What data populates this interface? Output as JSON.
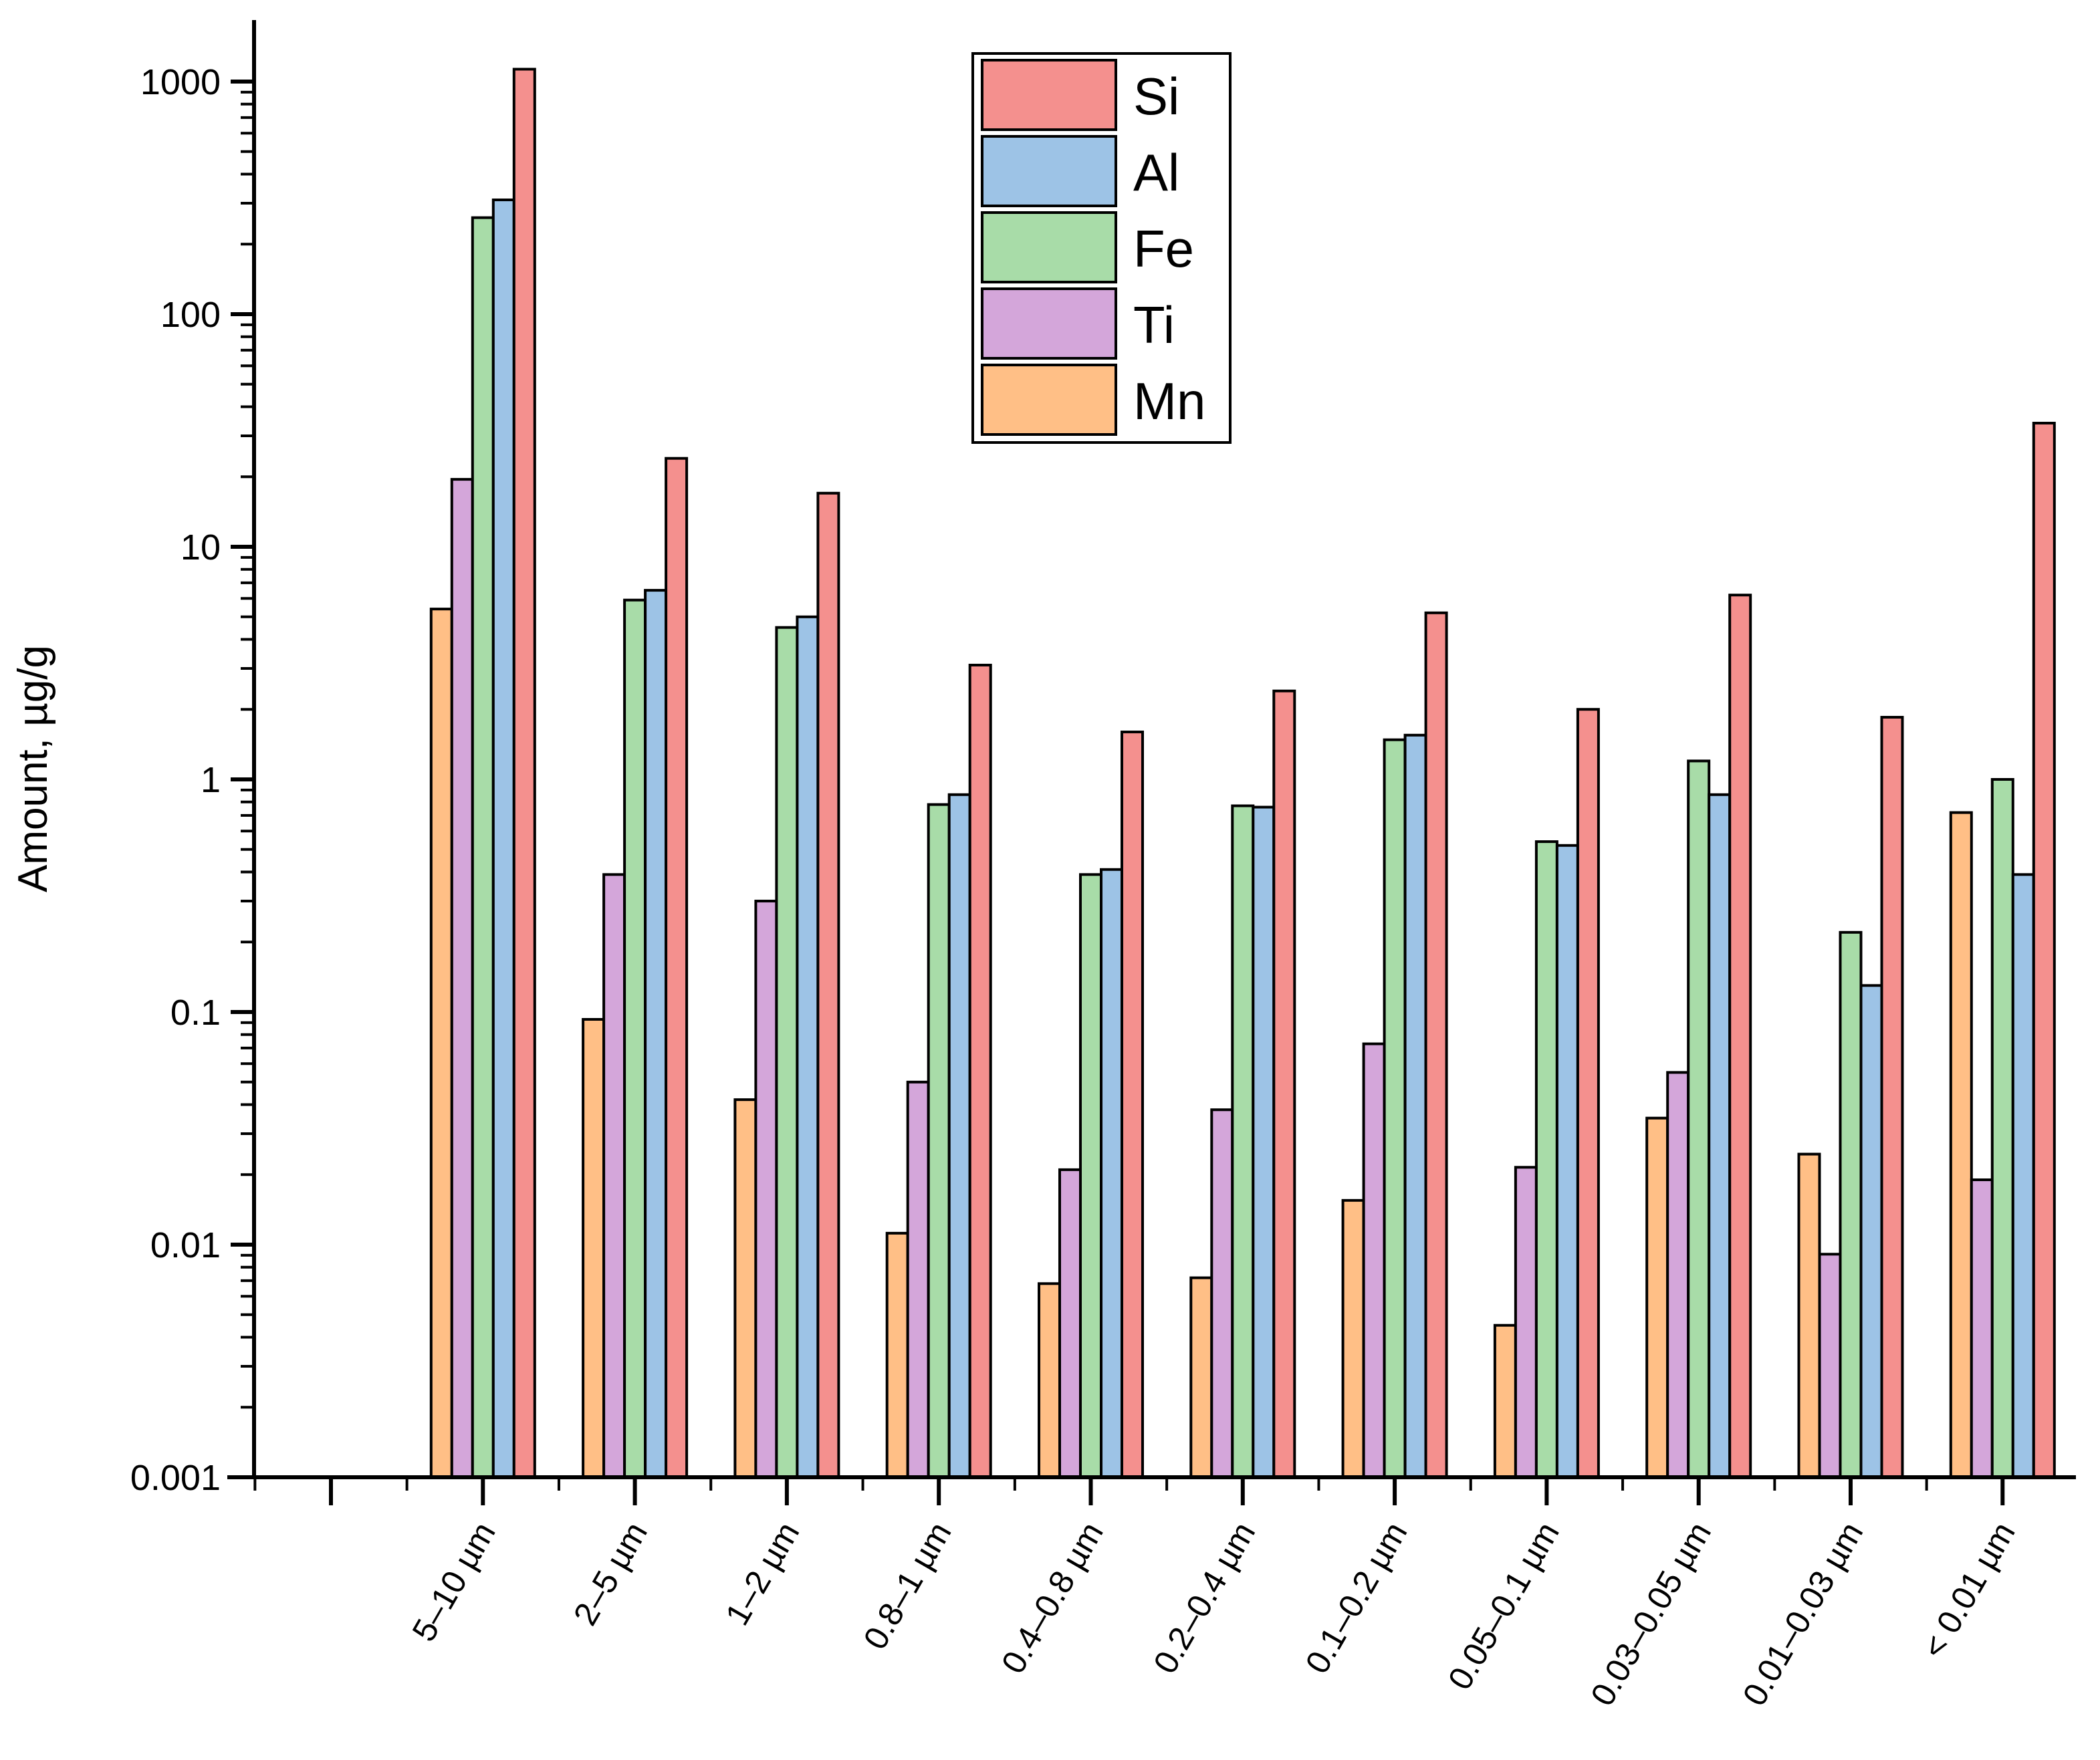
{
  "chart_data": {
    "type": "bar",
    "scale": "log",
    "title": "",
    "xlabel": "",
    "ylabel": "Amount, µg/g",
    "ylim": [
      0.001,
      1000
    ],
    "yticks": [
      {
        "value": 0.001,
        "label": "0.001"
      },
      {
        "value": 0.01,
        "label": "0.01"
      },
      {
        "value": 0.1,
        "label": "0.1"
      },
      {
        "value": 1,
        "label": "1"
      },
      {
        "value": 10,
        "label": "10"
      },
      {
        "value": 100,
        "label": "100"
      },
      {
        "value": 1000,
        "label": "1000"
      }
    ],
    "categories": [
      "",
      "5–10 µm",
      "2–5 µm",
      "1–2 µm",
      "0.8–1 µm",
      "0.4–0.8 µm",
      "0.2–0.4 µm",
      "0.1–0.2 µm",
      "0.05–0.1 µm",
      "0.03–0.05 µm",
      "0.01–0.03 µm",
      "< 0.01 µm"
    ],
    "legend_position": "top-center",
    "series": [
      {
        "name": "Mn",
        "color": "#FFBF86",
        "values": [
          null,
          5.4,
          0.093,
          0.042,
          0.0112,
          0.0068,
          0.0072,
          0.0155,
          0.0045,
          0.035,
          0.0245,
          0.72
        ]
      },
      {
        "name": "Ti",
        "color": "#D4A6DA",
        "values": [
          null,
          19.5,
          0.39,
          0.3,
          0.05,
          0.021,
          0.038,
          0.073,
          0.0215,
          0.055,
          0.0091,
          0.019
        ]
      },
      {
        "name": "Fe",
        "color": "#A8DCA8",
        "values": [
          null,
          260,
          5.9,
          4.5,
          0.78,
          0.39,
          0.77,
          1.48,
          0.54,
          1.2,
          0.22,
          1.0
        ]
      },
      {
        "name": "Al",
        "color": "#9DC3E6",
        "values": [
          null,
          310,
          6.5,
          5.0,
          0.86,
          0.41,
          0.76,
          1.55,
          0.52,
          0.86,
          0.13,
          0.39
        ]
      },
      {
        "name": "Si",
        "color": "#F4908E",
        "values": [
          null,
          1130,
          24,
          17,
          3.1,
          1.6,
          2.4,
          5.2,
          2.0,
          6.2,
          1.85,
          34
        ]
      }
    ],
    "legend_order": [
      "Si",
      "Al",
      "Fe",
      "Ti",
      "Mn"
    ]
  }
}
